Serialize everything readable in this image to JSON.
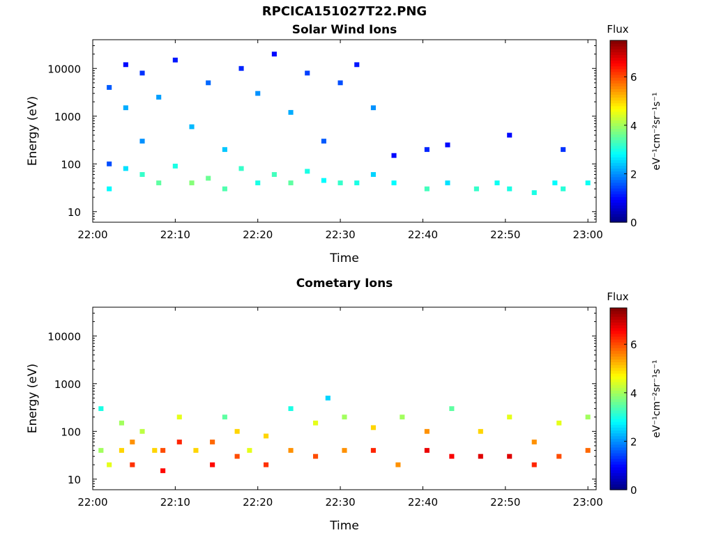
{
  "page_title": "RPCICA151027T22.PNG",
  "chart_data": [
    {
      "type": "heatmap",
      "title": "Solar Wind Ions",
      "xlabel": "Time",
      "ylabel": "Energy (eV)",
      "x_ticks": [
        "22:00",
        "22:10",
        "22:20",
        "22:30",
        "22:40",
        "22:50",
        "23:00"
      ],
      "x_range_minutes": [
        0,
        61
      ],
      "y_scale": "log",
      "y_ticks": [
        10,
        100,
        1000,
        10000
      ],
      "y_tick_labels": [
        "10",
        "100",
        "1000",
        "10000"
      ],
      "y_range": [
        6,
        40000
      ],
      "colorbar": {
        "label": "Flux",
        "unit": "eV⁻¹cm⁻²sr⁻¹s⁻¹",
        "ticks": [
          0,
          2,
          4,
          6
        ],
        "range": [
          0,
          7.5
        ],
        "colormap": "jet"
      },
      "cells": [
        [
          2.0,
          30,
          2.8
        ],
        [
          2.0,
          100,
          1.5
        ],
        [
          2.0,
          4000,
          1.6
        ],
        [
          4.0,
          80,
          2.6
        ],
        [
          4.0,
          1500,
          2.2
        ],
        [
          4.0,
          12000,
          1.0
        ],
        [
          6.0,
          60,
          3.2
        ],
        [
          6.0,
          300,
          2.0
        ],
        [
          6.0,
          8000,
          1.3
        ],
        [
          8.0,
          40,
          3.5
        ],
        [
          8.0,
          2500,
          2.1
        ],
        [
          10.0,
          90,
          3.0
        ],
        [
          10.0,
          15000,
          1.1
        ],
        [
          12.0,
          40,
          3.8
        ],
        [
          12.0,
          600,
          2.3
        ],
        [
          14.0,
          50,
          3.6
        ],
        [
          14.0,
          5000,
          1.7
        ],
        [
          16.0,
          30,
          3.4
        ],
        [
          16.0,
          200,
          2.4
        ],
        [
          18.0,
          80,
          3.2
        ],
        [
          18.0,
          10000,
          1.2
        ],
        [
          20.0,
          40,
          3.0
        ],
        [
          20.0,
          3000,
          2.0
        ],
        [
          22.0,
          60,
          3.3
        ],
        [
          22.0,
          20000,
          1.0
        ],
        [
          24.0,
          40,
          3.5
        ],
        [
          24.0,
          1200,
          2.2
        ],
        [
          26.0,
          70,
          3.0
        ],
        [
          26.0,
          8000,
          1.4
        ],
        [
          28.0,
          45,
          2.8
        ],
        [
          28.0,
          300,
          1.6
        ],
        [
          30.0,
          40,
          3.2
        ],
        [
          30.0,
          5000,
          1.5
        ],
        [
          32.0,
          40,
          3.0
        ],
        [
          32.0,
          12000,
          1.1
        ],
        [
          34.0,
          60,
          2.5
        ],
        [
          34.0,
          1500,
          2.0
        ],
        [
          36.5,
          40,
          2.8
        ],
        [
          36.5,
          150,
          1.0
        ],
        [
          40.5,
          30,
          3.3
        ],
        [
          40.5,
          200,
          1.2
        ],
        [
          43.0,
          40,
          2.6
        ],
        [
          43.0,
          250,
          1.0
        ],
        [
          46.5,
          30,
          3.2
        ],
        [
          49.0,
          40,
          2.9
        ],
        [
          50.5,
          30,
          3.0
        ],
        [
          50.5,
          400,
          1.0
        ],
        [
          53.5,
          25,
          3.0
        ],
        [
          56.0,
          40,
          2.8
        ],
        [
          57.0,
          30,
          3.1
        ],
        [
          57.0,
          200,
          1.3
        ],
        [
          60.0,
          40,
          2.9
        ]
      ]
    },
    {
      "type": "heatmap",
      "title": "Cometary Ions",
      "xlabel": "Time",
      "ylabel": "Energy (eV)",
      "x_ticks": [
        "22:00",
        "22:10",
        "22:20",
        "22:30",
        "22:40",
        "22:50",
        "23:00"
      ],
      "x_range_minutes": [
        0,
        61
      ],
      "y_scale": "log",
      "y_ticks": [
        10,
        100,
        1000,
        10000
      ],
      "y_tick_labels": [
        "10",
        "100",
        "1000",
        "10000"
      ],
      "y_range": [
        6,
        40000
      ],
      "colorbar": {
        "label": "Flux",
        "unit": "eV⁻¹cm⁻²sr⁻¹s⁻¹",
        "ticks": [
          0,
          2,
          4,
          6
        ],
        "range": [
          0,
          7.5
        ],
        "colormap": "jet"
      },
      "cells": [
        [
          1.0,
          40,
          4.0
        ],
        [
          1.0,
          300,
          3.0
        ],
        [
          2.0,
          20,
          4.5
        ],
        [
          3.5,
          40,
          5.0
        ],
        [
          3.5,
          150,
          4.0
        ],
        [
          4.8,
          20,
          6.2
        ],
        [
          4.8,
          60,
          5.5
        ],
        [
          6.0,
          100,
          4.2
        ],
        [
          7.5,
          40,
          5.0
        ],
        [
          8.5,
          15,
          6.5
        ],
        [
          8.5,
          40,
          6.0
        ],
        [
          10.5,
          60,
          6.3
        ],
        [
          10.5,
          200,
          4.5
        ],
        [
          12.5,
          40,
          5.0
        ],
        [
          14.5,
          20,
          6.5
        ],
        [
          14.5,
          60,
          5.8
        ],
        [
          16.0,
          200,
          3.5
        ],
        [
          17.5,
          30,
          6.0
        ],
        [
          17.5,
          100,
          5.0
        ],
        [
          19.0,
          40,
          4.5
        ],
        [
          21.0,
          20,
          6.2
        ],
        [
          21.0,
          80,
          5.0
        ],
        [
          24.0,
          40,
          5.5
        ],
        [
          24.0,
          300,
          3.0
        ],
        [
          27.0,
          30,
          6.0
        ],
        [
          27.0,
          150,
          4.5
        ],
        [
          28.5,
          500,
          2.5
        ],
        [
          30.5,
          40,
          5.5
        ],
        [
          30.5,
          200,
          4.0
        ],
        [
          34.0,
          40,
          6.3
        ],
        [
          34.0,
          120,
          5.0
        ],
        [
          37.0,
          20,
          5.5
        ],
        [
          37.5,
          200,
          4.0
        ],
        [
          40.5,
          40,
          6.7
        ],
        [
          40.5,
          100,
          5.5
        ],
        [
          43.5,
          30,
          6.6
        ],
        [
          43.5,
          300,
          3.5
        ],
        [
          47.0,
          30,
          6.8
        ],
        [
          47.0,
          100,
          5.0
        ],
        [
          50.5,
          30,
          6.8
        ],
        [
          50.5,
          200,
          4.5
        ],
        [
          53.5,
          20,
          6.3
        ],
        [
          53.5,
          60,
          5.5
        ],
        [
          56.5,
          30,
          6.0
        ],
        [
          56.5,
          150,
          4.5
        ],
        [
          60.0,
          40,
          5.8
        ],
        [
          60.0,
          200,
          4.0
        ]
      ]
    }
  ]
}
